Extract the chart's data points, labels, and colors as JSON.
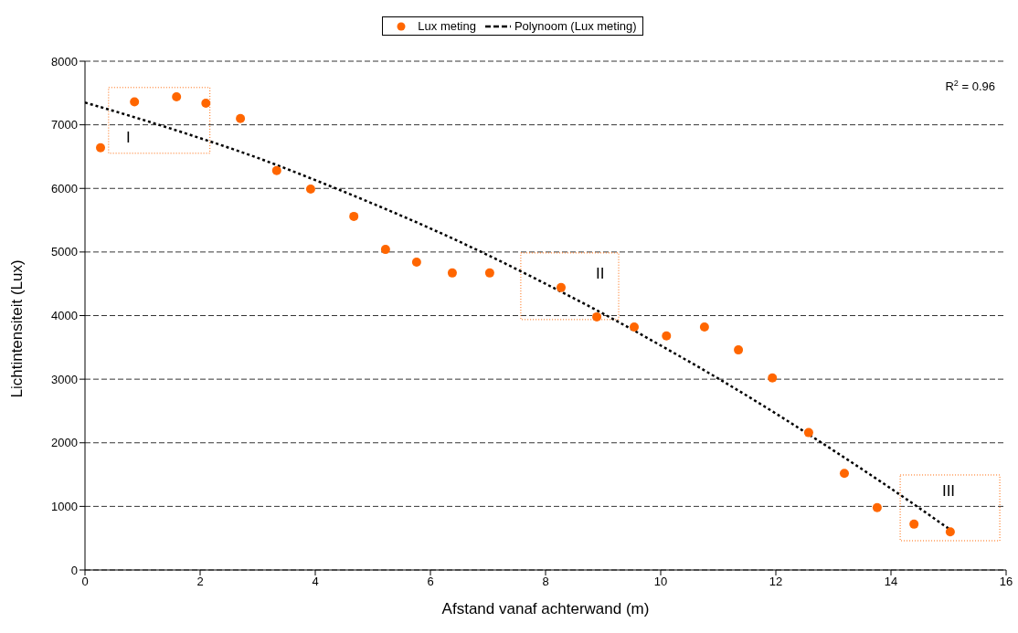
{
  "chart_data": {
    "type": "scatter",
    "xlabel": "Afstand vanaf achterwand (m)",
    "ylabel": "Lichtintensiteit (Lux)",
    "xlim": [
      0,
      16
    ],
    "xticks": [
      0,
      2,
      4,
      6,
      8,
      10,
      12,
      14,
      16
    ],
    "ylim": [
      0,
      8000
    ],
    "yticks": [
      0,
      1000,
      2000,
      3000,
      4000,
      5000,
      6000,
      7000,
      8000
    ],
    "grid": "y",
    "legend": "top",
    "series": [
      {
        "name": "Lux meting",
        "marker": "circle",
        "color": "#ff6600",
        "x": [
          0.27,
          0.86,
          1.59,
          2.1,
          2.7,
          3.33,
          3.92,
          4.67,
          5.22,
          5.76,
          6.38,
          7.03,
          8.27,
          8.89,
          9.54,
          10.1,
          10.76,
          11.35,
          11.94,
          12.57,
          13.19,
          13.76,
          14.4,
          15.03
        ],
        "values": [
          6640,
          7360,
          7440,
          7340,
          7100,
          6280,
          5990,
          5560,
          5040,
          4840,
          4670,
          4670,
          4440,
          3980,
          3820,
          3680,
          3820,
          3460,
          3020,
          2160,
          1520,
          980,
          720,
          600
        ]
      },
      {
        "name": "Polynoom (Lux meting)",
        "type": "line",
        "line_style": "dashed",
        "color": "#000000",
        "x": [
          0,
          1,
          2,
          3,
          4,
          5,
          6,
          7,
          8,
          9,
          10,
          11,
          12,
          13,
          14,
          15.05
        ],
        "values": [
          7350,
          7080,
          6790,
          6480,
          6130,
          5760,
          5370,
          4950,
          4500,
          4030,
          3530,
          3010,
          2460,
          1880,
          1280,
          620
        ]
      }
    ],
    "annotations": [
      "I",
      "II",
      "III",
      "R$^{2}$ = 0.96"
    ]
  }
}
